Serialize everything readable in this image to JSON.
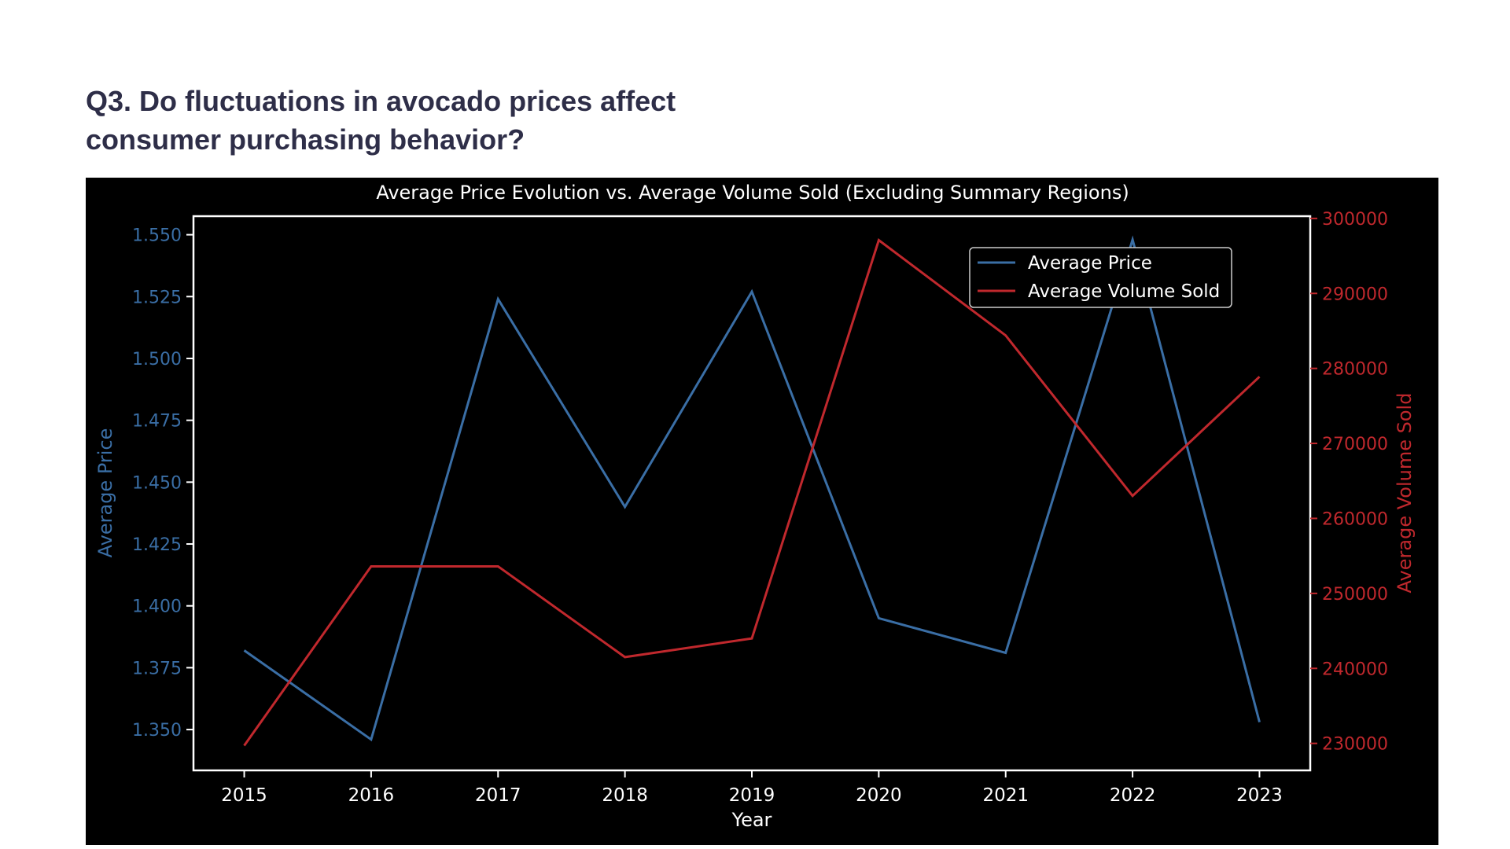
{
  "heading": {
    "line1": "Q3. Do fluctuations in avocado prices affect",
    "line2": "consumer purchasing behavior?"
  },
  "chart_data": {
    "type": "line",
    "title": "Average Price Evolution vs. Average Volume Sold (Excluding Summary Regions)",
    "xlabel": "Year",
    "ylabel_left": "Average Price",
    "ylabel_right": "Average Volume Sold",
    "x": [
      2015,
      2016,
      2017,
      2018,
      2019,
      2020,
      2021,
      2022,
      2023
    ],
    "x_tick_labels": [
      "2015",
      "2016",
      "2017",
      "2018",
      "2019",
      "2020",
      "2021",
      "2022",
      "2023"
    ],
    "y_left_ticks": [
      "1.350",
      "1.375",
      "1.400",
      "1.425",
      "1.450",
      "1.475",
      "1.500",
      "1.525",
      "1.550"
    ],
    "y_right_ticks": [
      "230000",
      "240000",
      "250000",
      "260000",
      "270000",
      "280000",
      "290000",
      "300000"
    ],
    "ylim_left": [
      1.3335,
      1.5575
    ],
    "ylim_right": [
      226400,
      300300
    ],
    "xlim": [
      2014.6,
      2023.4
    ],
    "series": [
      {
        "name": "Average Price",
        "axis": "left",
        "color": "#3a6ea5",
        "values": [
          1.382,
          1.346,
          1.524,
          1.44,
          1.527,
          1.395,
          1.381,
          1.548,
          1.353
        ]
      },
      {
        "name": "Average Volume Sold",
        "axis": "right",
        "color": "#c0282d",
        "values": [
          229700,
          253600,
          253600,
          241500,
          244000,
          297100,
          284400,
          263000,
          278900
        ]
      }
    ],
    "legend": {
      "position": "top-right"
    },
    "grid": false,
    "background": "#000000",
    "frame_color": "#ffffff",
    "text_color": "#ffffff"
  }
}
